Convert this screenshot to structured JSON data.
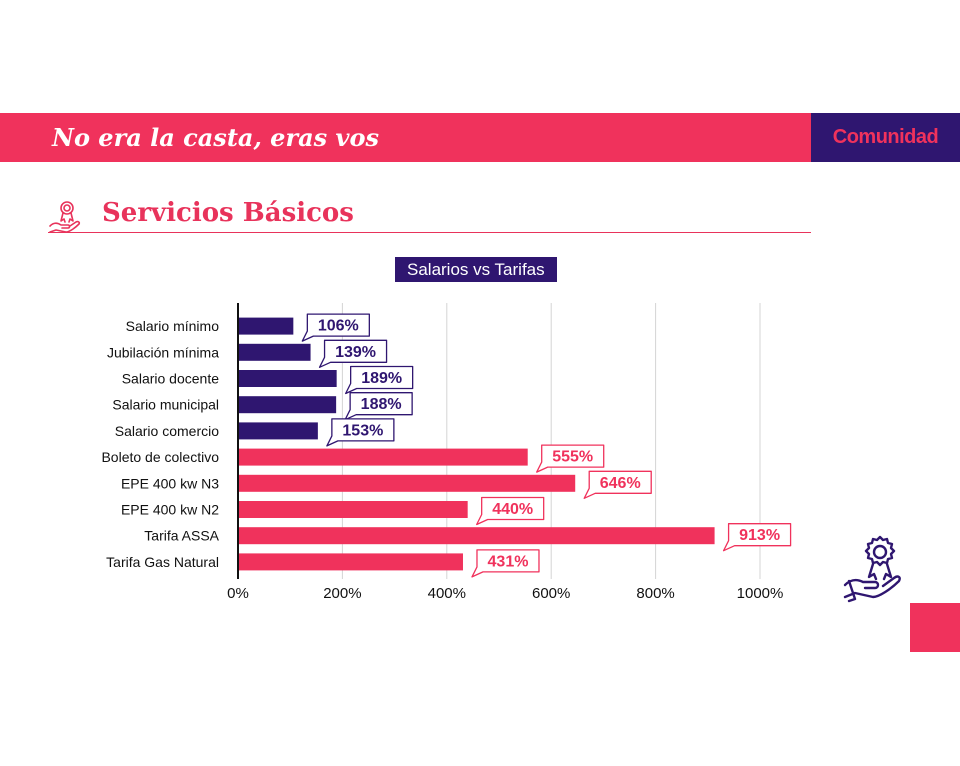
{
  "header": {
    "title": "No era la casta, eras vos",
    "brand": "Comunidad"
  },
  "section": {
    "title": "Servicios Básicos",
    "icon": "award-hand-icon"
  },
  "colors": {
    "pink": "#f0325c",
    "purple": "#2f1670",
    "salary_bar": "#2f1670",
    "tariff_bar": "#f0325c"
  },
  "chart_data": {
    "type": "bar",
    "orientation": "horizontal",
    "title": "Salarios vs Tarifas",
    "categories": [
      "Salario mínimo",
      "Jubilación mínima",
      "Salario docente",
      "Salario municipal",
      "Salario comercio",
      "Boleto de colectivo",
      "EPE 400 kw N3",
      "EPE 400 kw N2",
      "Tarifa ASSA",
      "Tarifa Gas Natural"
    ],
    "values": [
      106,
      139,
      189,
      188,
      153,
      555,
      646,
      440,
      913,
      431
    ],
    "data_labels": [
      "106%",
      "139%",
      "189%",
      "188%",
      "153%",
      "555%",
      "646%",
      "440%",
      "913%",
      "431%"
    ],
    "groups": [
      "salario",
      "salario",
      "salario",
      "salario",
      "salario",
      "tarifa",
      "tarifa",
      "tarifa",
      "tarifa",
      "tarifa"
    ],
    "xlim": [
      0,
      1000
    ],
    "x_ticks": [
      "0%",
      "200%",
      "400%",
      "600%",
      "800%",
      "1000%"
    ],
    "grid": true
  }
}
